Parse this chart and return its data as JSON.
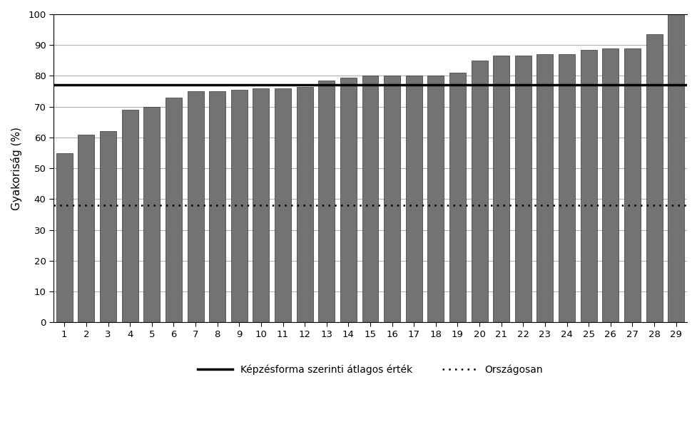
{
  "categories": [
    "1",
    "2",
    "3",
    "4",
    "5",
    "6",
    "7",
    "8",
    "9",
    "10",
    "11",
    "12",
    "13",
    "14",
    "15",
    "16",
    "17",
    "18",
    "19",
    "20",
    "21",
    "22",
    "23",
    "24",
    "25",
    "26",
    "27",
    "28",
    "29"
  ],
  "values": [
    55,
    61,
    62,
    69,
    70,
    73,
    75,
    75,
    75.5,
    76,
    76,
    76.5,
    78.5,
    79.5,
    80,
    80,
    80,
    80,
    81,
    85,
    86.5,
    86.5,
    87,
    87,
    88.5,
    89,
    89,
    93.5,
    100
  ],
  "bar_color": "#737373",
  "bar_edgecolor": "#333333",
  "avg_line_value": 77,
  "national_line_value": 38,
  "avg_line_color": "#000000",
  "national_line_color": "#000000",
  "ylabel": "Gyakoriság (%)",
  "ylim": [
    0,
    100
  ],
  "yticks": [
    0,
    10,
    20,
    30,
    40,
    50,
    60,
    70,
    80,
    90,
    100
  ],
  "legend_avg_label": "Képzésforma szerinti átlagos érték",
  "legend_national_label": "Országosan",
  "bg_color": "#ffffff",
  "grid_color": "#b0b0b0"
}
